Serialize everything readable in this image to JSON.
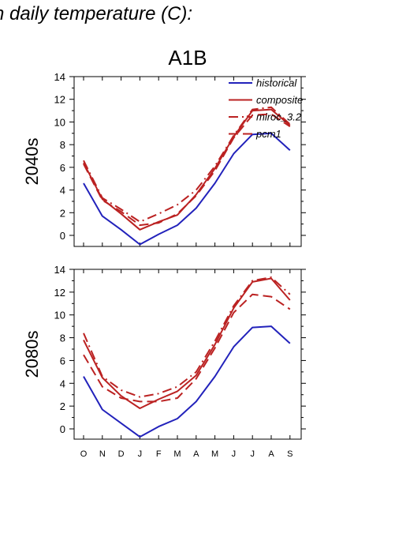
{
  "page": {
    "title": "n daily temperature (C):"
  },
  "chart_data": {
    "type": "line",
    "title": "A1B",
    "categories": [
      "O",
      "N",
      "D",
      "J",
      "F",
      "M",
      "A",
      "M",
      "J",
      "J",
      "A",
      "S"
    ],
    "legend": {
      "placement": "top-right",
      "entries": [
        "historical",
        "composite",
        "miroc_3.2",
        "pcm1"
      ]
    },
    "colors": {
      "historical": "#2222bb",
      "models": "#bb2222"
    },
    "panels": [
      {
        "label": "2040s",
        "ylim": [
          -1,
          14
        ],
        "yticks": [
          "0",
          "2",
          "4",
          "6",
          "8",
          "10",
          "12",
          "14"
        ],
        "series": [
          {
            "name": "historical",
            "style": "solid",
            "color": "#2222bb",
            "values": [
              4.6,
              1.7,
              0.5,
              -0.8,
              0.1,
              0.9,
              2.4,
              4.6,
              7.2,
              8.9,
              9.0,
              7.5
            ]
          },
          {
            "name": "composite",
            "style": "solid",
            "color": "#bb2222",
            "values": [
              6.4,
              3.2,
              1.9,
              0.5,
              1.2,
              1.8,
              3.6,
              5.9,
              8.7,
              11.0,
              11.1,
              9.7
            ]
          },
          {
            "name": "miroc_3.2",
            "style": "dashdot",
            "color": "#bb2222",
            "values": [
              6.6,
              3.3,
              2.3,
              1.2,
              1.9,
              2.7,
              4.0,
              6.1,
              8.8,
              11.1,
              11.3,
              9.8
            ]
          },
          {
            "name": "pcm1",
            "style": "dash",
            "color": "#bb2222",
            "values": [
              6.3,
              3.1,
              2.1,
              0.9,
              1.1,
              1.9,
              3.5,
              5.7,
              8.6,
              10.6,
              10.7,
              9.6
            ]
          }
        ]
      },
      {
        "label": "2080s",
        "ylim": [
          -1,
          14
        ],
        "yticks": [
          "0",
          "2",
          "4",
          "6",
          "8",
          "10",
          "12",
          "14"
        ],
        "series": [
          {
            "name": "historical",
            "style": "solid",
            "color": "#2222bb",
            "values": [
              4.6,
              1.7,
              0.5,
              -0.7,
              0.2,
              0.9,
              2.4,
              4.6,
              7.2,
              8.9,
              9.0,
              7.5
            ]
          },
          {
            "name": "composite",
            "style": "solid",
            "color": "#bb2222",
            "values": [
              7.8,
              4.5,
              2.9,
              1.8,
              2.6,
              3.3,
              4.7,
              7.4,
              10.6,
              12.9,
              13.2,
              11.3
            ]
          },
          {
            "name": "miroc_3.2",
            "style": "dashdot",
            "color": "#bb2222",
            "values": [
              8.4,
              4.6,
              3.4,
              2.8,
              3.1,
              3.7,
              5.0,
              7.7,
              10.8,
              13.0,
              13.3,
              11.8
            ]
          },
          {
            "name": "pcm1",
            "style": "dash",
            "color": "#bb2222",
            "values": [
              6.5,
              3.7,
              2.7,
              2.4,
              2.4,
              2.7,
              4.4,
              7.1,
              10.2,
              11.8,
              11.6,
              10.5
            ]
          }
        ]
      }
    ]
  }
}
